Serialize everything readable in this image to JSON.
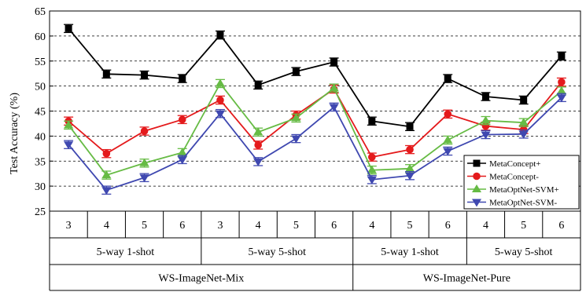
{
  "chart_data": {
    "type": "line",
    "ylabel": "Test Accuracy (%)",
    "ylim": [
      25,
      65
    ],
    "yticks": [
      25,
      30,
      35,
      40,
      45,
      50,
      55,
      60,
      65
    ],
    "grid": "horizontal dashed",
    "legend_position": "right",
    "x_labels": [
      "3",
      "4",
      "5",
      "6",
      "3",
      "4",
      "5",
      "6",
      "4",
      "5",
      "6",
      "4",
      "5",
      "6"
    ],
    "groups_level2": [
      {
        "label": "5-way 1-shot",
        "span": 4
      },
      {
        "label": "5-way 5-shot",
        "span": 4
      },
      {
        "label": "5-way 1-shot",
        "span": 3
      },
      {
        "label": "5-way 5-shot",
        "span": 3
      }
    ],
    "groups_level3": [
      {
        "label": "WS-ImageNet-Mix",
        "span": 8
      },
      {
        "label": "WS-ImageNet-Pure",
        "span": 6
      }
    ],
    "series": [
      {
        "name": "MetaConcept+",
        "color": "#000000",
        "marker": "square",
        "values": [
          61.5,
          52.4,
          52.2,
          51.5,
          60.2,
          50.2,
          52.9,
          54.8,
          43.0,
          41.9,
          51.5,
          47.9,
          47.2,
          56.0
        ],
        "error": [
          0.8,
          0.8,
          0.8,
          0.8,
          0.8,
          0.8,
          0.8,
          0.8,
          0.8,
          0.8,
          0.8,
          0.8,
          0.8,
          0.8
        ]
      },
      {
        "name": "MetaConcept-",
        "color": "#e41a1c",
        "marker": "circle",
        "values": [
          43.0,
          36.5,
          41.0,
          43.3,
          47.2,
          38.2,
          44.2,
          49.4,
          35.8,
          37.3,
          44.4,
          42.0,
          41.3,
          50.8
        ],
        "error": [
          0.8,
          0.8,
          0.8,
          0.8,
          0.8,
          0.8,
          0.8,
          0.8,
          0.8,
          0.8,
          0.8,
          0.8,
          0.8,
          0.8
        ]
      },
      {
        "name": "MetaOptNet-SVM+",
        "color": "#66bb44",
        "marker": "triangle-up",
        "values": [
          42.2,
          32.2,
          34.6,
          36.7,
          50.5,
          40.8,
          43.6,
          49.6,
          33.2,
          33.5,
          39.2,
          43.1,
          42.7,
          49.0
        ],
        "error": [
          0.8,
          0.8,
          0.8,
          0.8,
          0.8,
          0.8,
          0.8,
          0.8,
          0.8,
          0.8,
          0.8,
          0.8,
          0.8,
          0.8
        ]
      },
      {
        "name": "MetaOptNet-SVM-",
        "color": "#3f48b0",
        "marker": "triangle-down",
        "values": [
          38.3,
          29.2,
          31.7,
          35.3,
          44.5,
          34.9,
          39.5,
          45.8,
          31.3,
          32.1,
          37.0,
          40.3,
          40.4,
          47.7
        ],
        "error": [
          0.8,
          0.8,
          0.8,
          0.8,
          0.8,
          0.8,
          0.8,
          0.8,
          0.8,
          0.8,
          0.8,
          0.8,
          0.8,
          0.8
        ]
      }
    ]
  }
}
